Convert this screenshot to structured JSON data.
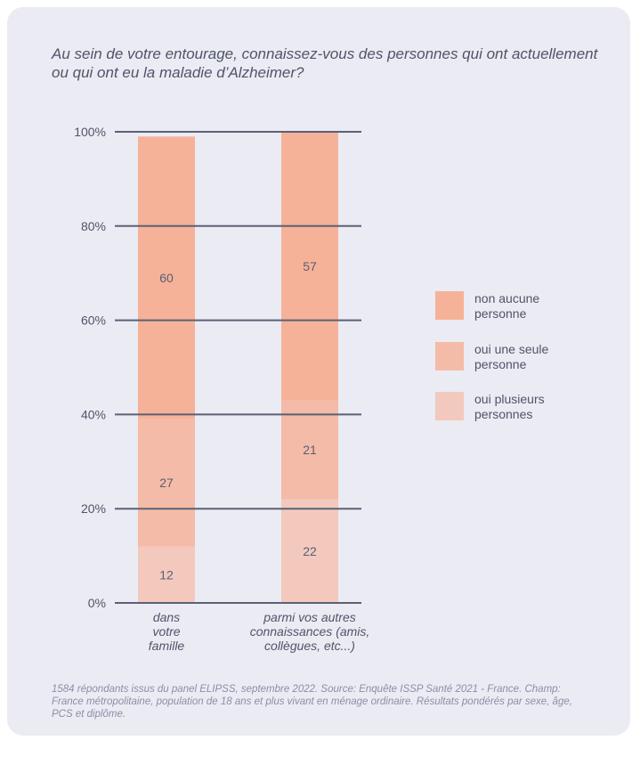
{
  "title": "Au sein de votre entourage, connaissez-vous des personnes qui ont actuellement ou qui ont eu la maladie d’Alzheimer?",
  "footnote": "1584 répondants issus du panel ELIPSS, septembre 2022. Source: Enquête ISSP Santé 2021 - France. Champ: France métropolitaine, population de 18 ans et plus vivant en ménage ordinaire. Résultats pondérés par sexe, âge, PCS et diplôme.",
  "chart_data": {
    "type": "bar",
    "stacked": true,
    "categories": [
      [
        "dans",
        "votre",
        "famille"
      ],
      [
        "parmi vos autres",
        "connaissances (amis,",
        "collègues, etc...)"
      ]
    ],
    "series": [
      {
        "name": "oui plusieurs personnes",
        "values": [
          12,
          22
        ],
        "color": "#f3c9be"
      },
      {
        "name": "oui une seule personne",
        "values": [
          27,
          21
        ],
        "color": "#f4bba8"
      },
      {
        "name": "non aucune personne",
        "values": [
          60,
          57
        ],
        "color": "#f6b298"
      }
    ],
    "legend_order": [
      2,
      1,
      0
    ],
    "y_ticks": [
      "0%",
      "20%",
      "40%",
      "60%",
      "80%",
      "100%"
    ],
    "ylim": [
      0,
      100
    ],
    "legend_position": "right"
  }
}
